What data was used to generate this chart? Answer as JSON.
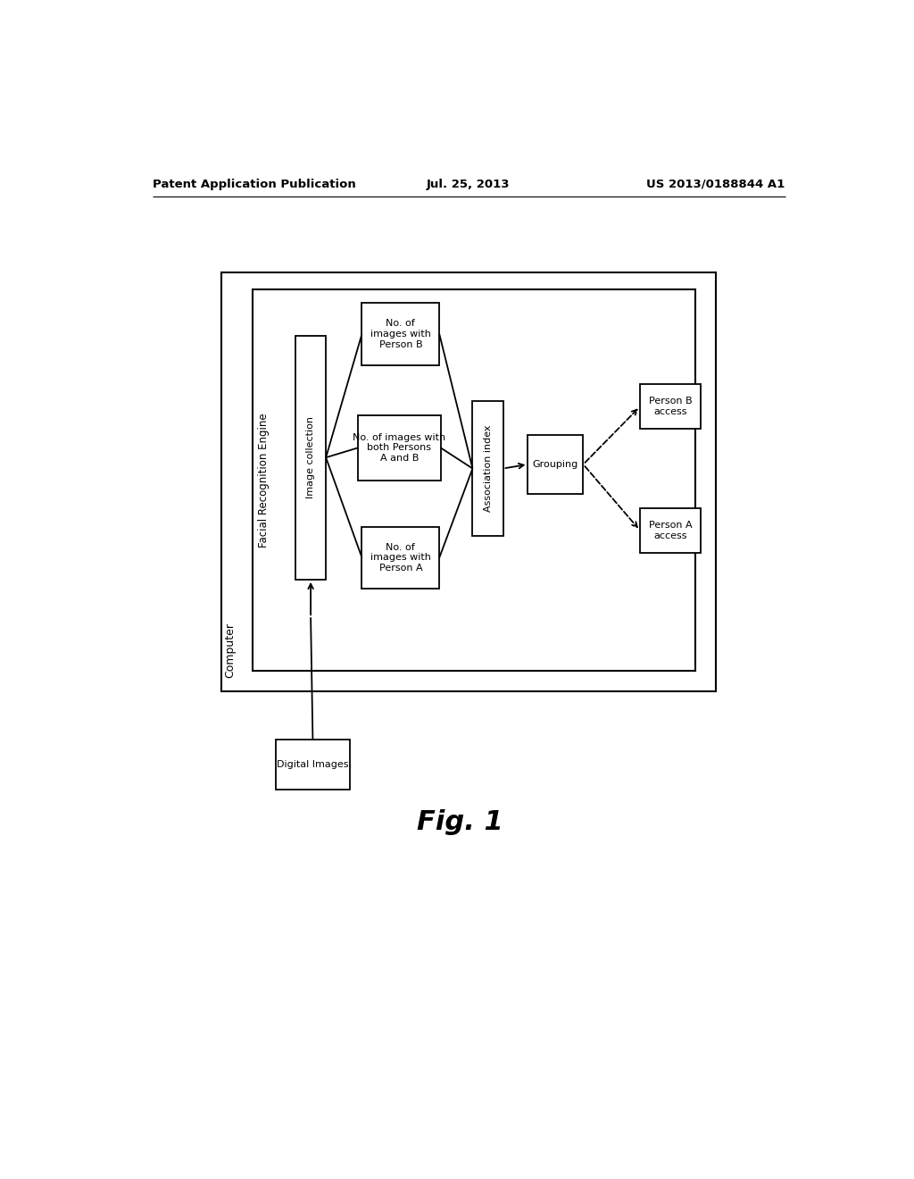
{
  "bg_color": "#ffffff",
  "header_left": "Patent Application Publication",
  "header_center": "Jul. 25, 2013",
  "header_right": "US 2013/0188844 A1",
  "fig_label": "Fig. 1",
  "computer_label": "Computer",
  "facial_engine_label": "Facial Recognition Engine",
  "image_collection_label": "Image collection",
  "no_person_b_label": "No. of\nimages with\nPerson B",
  "no_both_label": "No. of images with\nboth Persons\nA and B",
  "no_person_a_label": "No. of\nimages with\nPerson A",
  "assoc_index_label": "Association index",
  "grouping_label": "Grouping",
  "person_b_access_label": "Person B\naccess",
  "person_a_access_label": "Person A\naccess",
  "digital_images_label": "Digital Images"
}
